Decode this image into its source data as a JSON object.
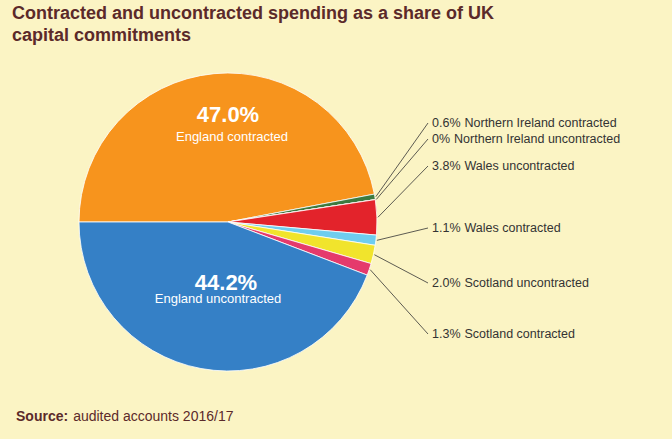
{
  "chart_data": {
    "type": "pie",
    "title": [
      "Contracted and uncontracted spending as a share of UK",
      "capital commitments"
    ],
    "categories": [
      "England contracted",
      "Northern Ireland contracted",
      "Northern Ireland uncontracted",
      "Wales uncontracted",
      "Wales contracted",
      "Scotland uncontracted",
      "Scotland contracted",
      "England uncontracted"
    ],
    "values": [
      47.0,
      0.6,
      0,
      3.8,
      1.1,
      2.0,
      1.3,
      44.2
    ],
    "value_labels": [
      "47.0%",
      "0.6%",
      "0%",
      "3.8%",
      "1.1%",
      "2.0%",
      "1.3%",
      "44.2%"
    ],
    "colors": [
      "#f7941d",
      "#3d7a3f",
      "#8dc63f",
      "#e3232b",
      "#6fcdef",
      "#f1e42c",
      "#e53a6c",
      "#3580c6"
    ],
    "data_labels": true,
    "source_label": "Source:",
    "source": "audited accounts 2016/17"
  }
}
